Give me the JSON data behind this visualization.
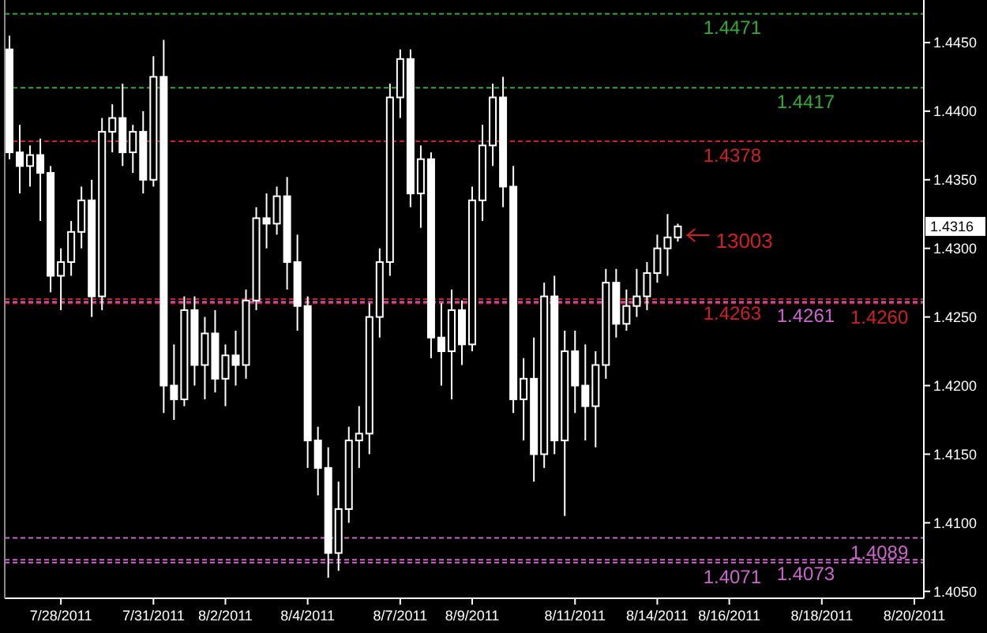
{
  "chart_data": {
    "type": "candlestick",
    "categories": [
      null,
      null,
      null,
      null,
      null,
      "7/28/2011",
      null,
      null,
      null,
      null,
      null,
      null,
      null,
      null,
      "7/31/2011",
      null,
      null,
      null,
      null,
      null,
      null,
      "8/2/2011",
      null,
      null,
      null,
      null,
      null,
      null,
      null,
      "8/4/2011",
      null,
      null,
      null,
      null,
      null,
      null,
      null,
      null,
      "8/7/2011",
      null,
      null,
      null,
      null,
      null,
      null,
      "8/9/2011",
      null,
      null,
      null,
      null,
      null,
      null,
      null,
      null,
      null,
      "8/11/2011",
      null,
      null,
      null,
      null,
      null,
      null,
      null,
      "8/14/2011",
      null,
      null,
      null,
      null,
      null,
      null,
      "8/16/2011",
      null,
      null,
      null,
      null,
      null,
      null,
      null,
      null,
      "8/18/2011",
      null,
      null,
      null,
      null,
      null,
      null,
      null,
      null,
      "8/20/2011"
    ],
    "ohlc": [
      [
        1.4445,
        1.4455,
        1.4365,
        1.437
      ],
      [
        1.437,
        1.439,
        1.434,
        1.436
      ],
      [
        1.436,
        1.4375,
        1.4345,
        1.4368
      ],
      [
        1.4368,
        1.438,
        1.432,
        1.4355
      ],
      [
        1.4355,
        1.436,
        1.4268,
        1.428
      ],
      [
        1.428,
        1.43,
        1.4255,
        1.429
      ],
      [
        1.429,
        1.432,
        1.428,
        1.4312
      ],
      [
        1.4312,
        1.4345,
        1.43,
        1.4335
      ],
      [
        1.4335,
        1.435,
        1.425,
        1.4265
      ],
      [
        1.4265,
        1.4395,
        1.4255,
        1.4385
      ],
      [
        1.4385,
        1.4405,
        1.437,
        1.4395
      ],
      [
        1.4395,
        1.442,
        1.436,
        1.437
      ],
      [
        1.437,
        1.439,
        1.4355,
        1.4385
      ],
      [
        1.4385,
        1.44,
        1.434,
        1.435
      ],
      [
        1.435,
        1.444,
        1.4345,
        1.4425
      ],
      [
        1.4425,
        1.4452,
        1.418,
        1.42
      ],
      [
        1.42,
        1.423,
        1.4175,
        1.419
      ],
      [
        1.419,
        1.4265,
        1.4185,
        1.4255
      ],
      [
        1.4255,
        1.4265,
        1.42,
        1.4215
      ],
      [
        1.4215,
        1.425,
        1.419,
        1.4238
      ],
      [
        1.4238,
        1.4255,
        1.4195,
        1.4205
      ],
      [
        1.4205,
        1.423,
        1.4185,
        1.4222
      ],
      [
        1.4222,
        1.424,
        1.42,
        1.4215
      ],
      [
        1.4215,
        1.427,
        1.4205,
        1.4262
      ],
      [
        1.4262,
        1.433,
        1.4255,
        1.4322
      ],
      [
        1.4322,
        1.434,
        1.43,
        1.4318
      ],
      [
        1.4318,
        1.4345,
        1.431,
        1.4338
      ],
      [
        1.4338,
        1.4352,
        1.427,
        1.429
      ],
      [
        1.429,
        1.431,
        1.424,
        1.4258
      ],
      [
        1.4258,
        1.4265,
        1.414,
        1.416
      ],
      [
        1.416,
        1.417,
        1.412,
        1.414
      ],
      [
        1.414,
        1.4155,
        1.406,
        1.4078
      ],
      [
        1.4078,
        1.413,
        1.4065,
        1.411
      ],
      [
        1.411,
        1.417,
        1.41,
        1.416
      ],
      [
        1.416,
        1.4185,
        1.414,
        1.4165
      ],
      [
        1.4165,
        1.426,
        1.415,
        1.425
      ],
      [
        1.425,
        1.43,
        1.4235,
        1.429
      ],
      [
        1.429,
        1.442,
        1.428,
        1.441
      ],
      [
        1.441,
        1.4445,
        1.4395,
        1.4438
      ],
      [
        1.4438,
        1.4445,
        1.433,
        1.434
      ],
      [
        1.434,
        1.4375,
        1.4315,
        1.4365
      ],
      [
        1.4365,
        1.437,
        1.422,
        1.4235
      ],
      [
        1.4235,
        1.426,
        1.42,
        1.4225
      ],
      [
        1.4225,
        1.427,
        1.419,
        1.4255
      ],
      [
        1.4255,
        1.4262,
        1.4215,
        1.423
      ],
      [
        1.423,
        1.4345,
        1.4225,
        1.4335
      ],
      [
        1.4335,
        1.439,
        1.432,
        1.4375
      ],
      [
        1.4375,
        1.442,
        1.436,
        1.441
      ],
      [
        1.441,
        1.4425,
        1.433,
        1.4345
      ],
      [
        1.4345,
        1.436,
        1.418,
        1.419
      ],
      [
        1.419,
        1.422,
        1.416,
        1.4205
      ],
      [
        1.4205,
        1.4235,
        1.413,
        1.415
      ],
      [
        1.415,
        1.4275,
        1.414,
        1.4265
      ],
      [
        1.4265,
        1.428,
        1.415,
        1.416
      ],
      [
        1.416,
        1.424,
        1.4105,
        1.4225
      ],
      [
        1.4225,
        1.424,
        1.418,
        1.42
      ],
      [
        1.42,
        1.423,
        1.416,
        1.4185
      ],
      [
        1.4185,
        1.4225,
        1.4155,
        1.4215
      ],
      [
        1.4215,
        1.4285,
        1.4205,
        1.4275
      ],
      [
        1.4275,
        1.4285,
        1.4235,
        1.4245
      ],
      [
        1.4245,
        1.427,
        1.424,
        1.4258
      ],
      [
        1.4258,
        1.4285,
        1.425,
        1.4265
      ],
      [
        1.4265,
        1.429,
        1.4255,
        1.4282
      ],
      [
        1.4282,
        1.431,
        1.4275,
        1.43
      ],
      [
        1.43,
        1.4325,
        1.428,
        1.4308
      ],
      [
        1.4308,
        1.4318,
        1.4305,
        1.4316
      ],
      null,
      null,
      null,
      null,
      null,
      null,
      null,
      null,
      null,
      null,
      null,
      null,
      null,
      null,
      null,
      null,
      null,
      null,
      null,
      null,
      null,
      null,
      null
    ],
    "color": "#ffffff",
    "ylim": [
      1.4045,
      1.4481
    ],
    "yticks": [
      {
        "value": 1.405,
        "label": "1.4050"
      },
      {
        "value": 1.41,
        "label": "1.4100"
      },
      {
        "value": 1.415,
        "label": "1.4150"
      },
      {
        "value": 1.42,
        "label": "1.4200"
      },
      {
        "value": 1.425,
        "label": "1.4250"
      },
      {
        "value": 1.43,
        "label": "1.4300"
      },
      {
        "value": 1.435,
        "label": "1.4350"
      },
      {
        "value": 1.44,
        "label": "1.4400"
      },
      {
        "value": 1.445,
        "label": "1.4450"
      }
    ],
    "ref_lines": [
      {
        "axis": "y",
        "value": 1.4471,
        "label": "1.4471",
        "color": "#33aa33",
        "line_style": "dashed"
      },
      {
        "axis": "y",
        "value": 1.4417,
        "label": "1.4417",
        "color": "#33aa33",
        "line_style": "dashed"
      },
      {
        "axis": "y",
        "value": 1.4378,
        "label": "1.4378",
        "color": "#cc2222",
        "line_style": "dashed"
      },
      {
        "axis": "y",
        "value": 1.4263,
        "label": "1.4263",
        "color": "#cc2222",
        "line_style": "dashed"
      },
      {
        "axis": "y",
        "value": 1.426,
        "label": "1.4260",
        "color": "#cc2222",
        "line_style": "dashed"
      },
      {
        "axis": "y",
        "value": 1.4261,
        "label": "1.4261",
        "color": "#cc66cc",
        "line_style": "dashed"
      },
      {
        "axis": "y",
        "value": 1.4071,
        "label": "1.4071",
        "color": "#cc66cc",
        "line_style": "dashed"
      },
      {
        "axis": "y",
        "value": 1.4073,
        "label": "1.4073",
        "color": "#cc66cc",
        "line_style": "dashed"
      },
      {
        "axis": "y",
        "value": 1.4089,
        "label": "1.4089",
        "color": "#cc66cc",
        "line_style": "dashed"
      }
    ],
    "annotations": [
      "13003",
      "1.4316"
    ]
  }
}
